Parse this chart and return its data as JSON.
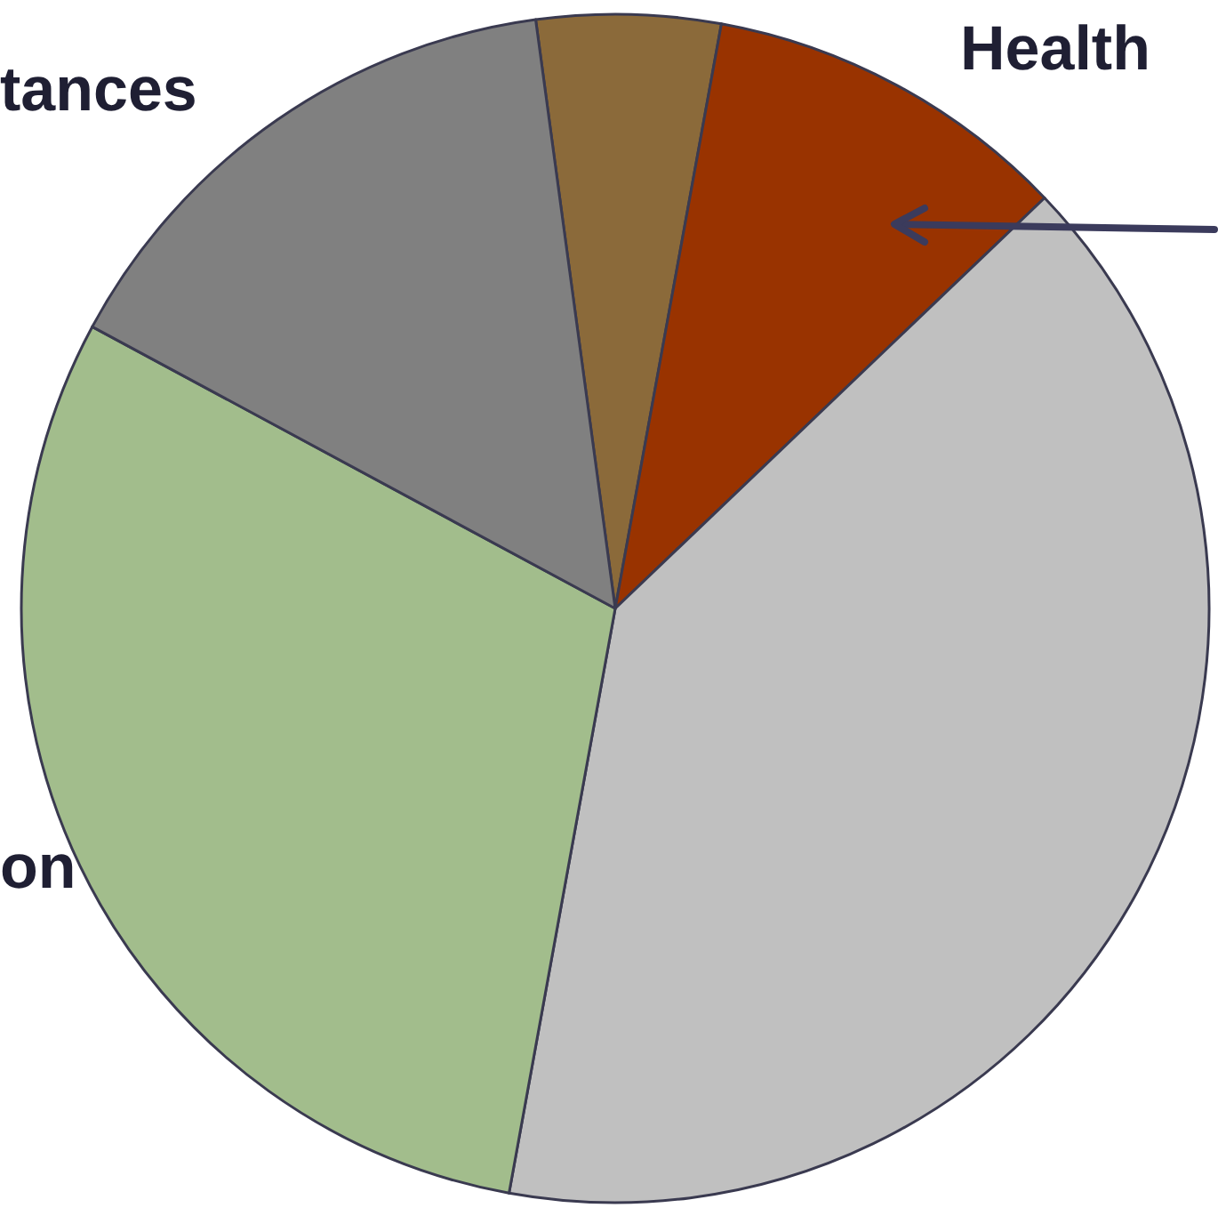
{
  "chart_data": {
    "type": "pie",
    "categories": [
      null,
      "Health",
      null,
      "on",
      "tances"
    ],
    "values": [
      5,
      10,
      40,
      30,
      15
    ],
    "colors": [
      "#8b6a3a",
      "#993300",
      "#c0c0c0",
      "#a2bd8c",
      "#808080"
    ]
  }
}
